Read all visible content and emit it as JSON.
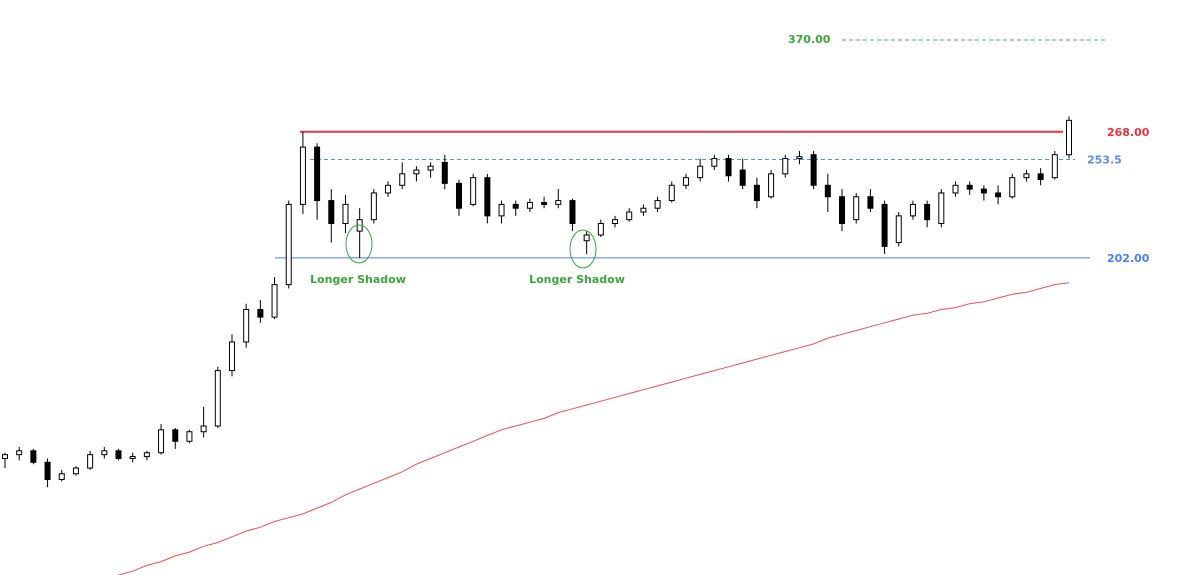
{
  "chart_data": {
    "type": "candlestick",
    "ylim": [
      36,
      337
    ],
    "up_color": "#ffffff",
    "down_color": "#000000",
    "outline_color": "#000000",
    "open": [
      97,
      99,
      101,
      95,
      86,
      89,
      92,
      99,
      101,
      97,
      98,
      100,
      112,
      106,
      111,
      114,
      143,
      158,
      175,
      171,
      188,
      230,
      260,
      232,
      220,
      216,
      222,
      236,
      240,
      246,
      248,
      252,
      241,
      230,
      244,
      224,
      230,
      228,
      231,
      230,
      232,
      211,
      214,
      220,
      222,
      226,
      228,
      232,
      240,
      244,
      250,
      254,
      248,
      240,
      234,
      246,
      254,
      256,
      240,
      234,
      222,
      234,
      230,
      210,
      224,
      230,
      220,
      236,
      240,
      238,
      236,
      234,
      244,
      246,
      244,
      256
    ],
    "high": [
      100,
      103,
      102,
      97,
      91,
      93,
      101,
      103,
      102,
      100,
      101,
      115,
      113,
      112,
      124,
      145,
      162,
      178,
      180,
      192,
      232,
      268,
      262,
      238,
      235,
      228,
      238,
      242,
      252,
      250,
      252,
      256,
      243,
      246,
      246,
      232,
      232,
      233,
      234,
      238,
      233,
      216,
      222,
      224,
      228,
      230,
      234,
      242,
      246,
      254,
      256,
      256,
      254,
      244,
      248,
      256,
      258,
      258,
      246,
      238,
      236,
      238,
      232,
      226,
      232,
      232,
      238,
      242,
      242,
      240,
      240,
      246,
      248,
      249,
      258,
      276
    ],
    "low": [
      92,
      96,
      94,
      82,
      85,
      88,
      91,
      97,
      96,
      95,
      96,
      99,
      102,
      105,
      108,
      113,
      140,
      155,
      168,
      170,
      186,
      225,
      222,
      210,
      215,
      202,
      220,
      234,
      238,
      242,
      244,
      238,
      224,
      229,
      220,
      220,
      224,
      226,
      228,
      228,
      216,
      204,
      213,
      218,
      221,
      224,
      226,
      231,
      238,
      242,
      248,
      242,
      238,
      228,
      233,
      244,
      251,
      238,
      226,
      216,
      220,
      226,
      204,
      208,
      222,
      218,
      218,
      234,
      235,
      232,
      230,
      233,
      242,
      240,
      243,
      254
    ],
    "close": [
      99,
      101,
      95,
      86,
      89,
      92,
      99,
      101,
      97,
      98,
      100,
      112,
      106,
      111,
      114,
      143,
      158,
      175,
      171,
      188,
      230,
      260,
      232,
      220,
      230,
      222,
      236,
      240,
      246,
      248,
      250,
      241,
      228,
      244,
      224,
      230,
      228,
      231,
      230,
      232,
      220,
      214,
      220,
      222,
      226,
      228,
      232,
      240,
      244,
      250,
      254,
      245,
      240,
      232,
      246,
      254,
      255,
      240,
      234,
      220,
      234,
      228,
      208,
      224,
      230,
      222,
      236,
      240,
      238,
      236,
      234,
      244,
      246,
      243,
      256,
      274
    ],
    "moving_average": {
      "color": "#f0504f",
      "values": [
        null,
        null,
        null,
        null,
        null,
        null,
        null,
        null,
        36,
        38,
        41,
        43,
        46,
        48,
        51,
        53,
        56,
        59,
        61,
        64,
        66,
        68,
        71,
        74,
        78,
        81,
        84,
        87,
        90,
        94,
        97,
        100,
        103,
        106,
        109,
        112,
        114,
        116,
        118,
        121,
        123,
        125,
        127,
        129,
        131,
        133,
        135,
        137,
        139,
        141,
        143,
        145,
        147,
        149,
        151,
        153,
        155,
        157,
        160,
        162,
        164,
        166,
        168,
        170,
        172,
        173,
        175,
        176,
        178,
        179,
        181,
        183,
        184,
        186,
        188,
        189
      ]
    },
    "levels": {
      "values": [
        268,
        253.5,
        202
      ],
      "value_labels": [
        "268.00",
        "253.5",
        "202.00"
      ],
      "colors": [
        "#e8323c",
        "#5b8ee8",
        "#4a7ff0"
      ],
      "styles": [
        "solid",
        "dashed",
        "solid"
      ]
    },
    "target_label": "370.00",
    "annotations": [
      "Longer Shadow",
      "Longer Shadow"
    ]
  }
}
